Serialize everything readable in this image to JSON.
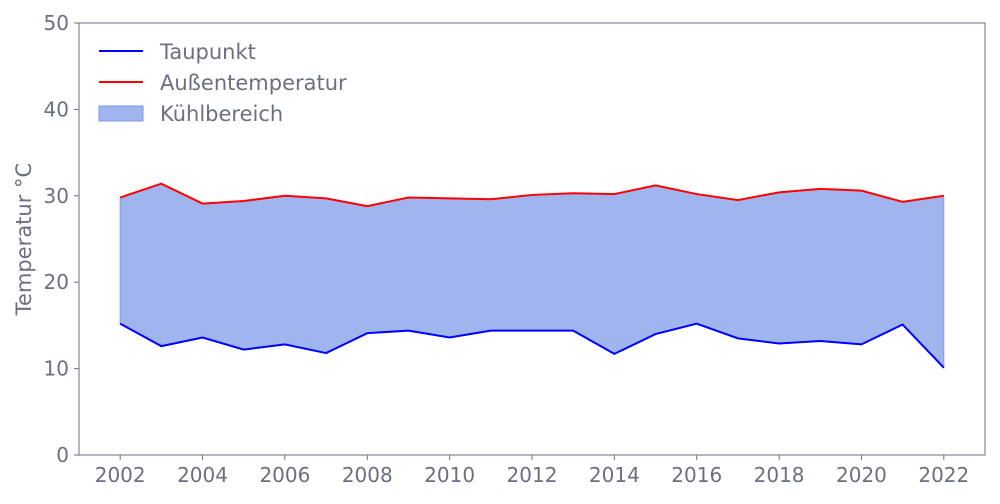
{
  "chart_data": {
    "type": "line",
    "title": "",
    "xlabel": "",
    "ylabel": "Temperatur °C",
    "xlim": [
      2001,
      2023
    ],
    "ylim": [
      0,
      50
    ],
    "xticks": [
      2002,
      2004,
      2006,
      2008,
      2010,
      2012,
      2014,
      2016,
      2018,
      2020,
      2022
    ],
    "yticks": [
      0,
      10,
      20,
      30,
      40,
      50
    ],
    "grid": false,
    "legend_position": "top-left",
    "x": [
      2002,
      2003,
      2004,
      2005,
      2006,
      2007,
      2008,
      2009,
      2010,
      2011,
      2012,
      2013,
      2014,
      2015,
      2016,
      2017,
      2018,
      2019,
      2020,
      2021,
      2022
    ],
    "series": [
      {
        "name": "Taupunkt",
        "color": "#0000ff",
        "values": [
          15.2,
          12.6,
          13.6,
          12.2,
          12.8,
          11.8,
          14.1,
          14.4,
          13.6,
          14.4,
          14.4,
          14.4,
          11.7,
          14.0,
          15.2,
          13.5,
          12.9,
          13.2,
          12.8,
          15.1,
          10.1
        ]
      },
      {
        "name": "Außentemperatur",
        "color": "#ff0000",
        "values": [
          29.8,
          31.4,
          29.1,
          29.4,
          30.0,
          29.7,
          28.8,
          29.8,
          29.7,
          29.6,
          30.1,
          30.3,
          30.2,
          31.2,
          30.2,
          29.5,
          30.4,
          30.8,
          30.6,
          29.3,
          30.0
        ]
      }
    ],
    "fill_between": {
      "name": "Kühlbereich",
      "color": "#a0b4ee",
      "edge_color": "#7f9ae6",
      "lower": "Taupunkt",
      "upper": "Außentemperatur"
    }
  }
}
